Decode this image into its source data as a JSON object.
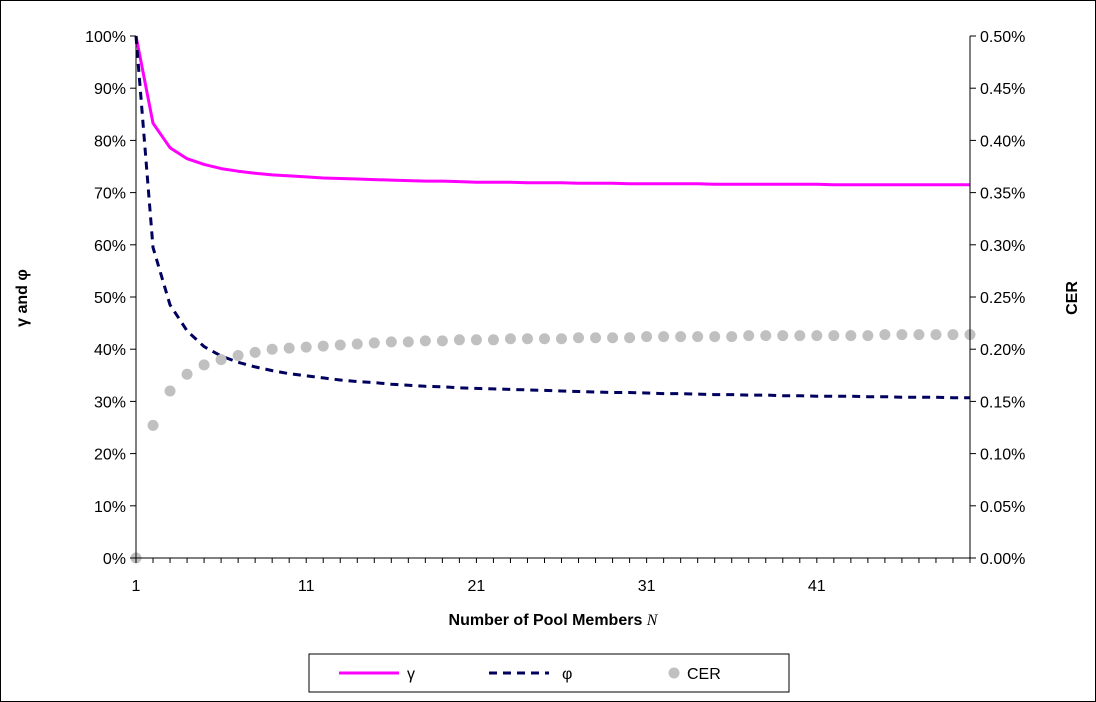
{
  "chart_data": {
    "type": "line",
    "xlabel": "Number of Pool Members",
    "xlabel_var": "N",
    "ylabel_left": "γ and φ",
    "ylabel_right": "CER",
    "x_ticks": [
      1,
      11,
      21,
      31,
      41
    ],
    "xlim": [
      1,
      50
    ],
    "ylim_left": [
      0,
      1
    ],
    "ylim_right": [
      0,
      0.005
    ],
    "y_ticks_left": [
      "0%",
      "10%",
      "20%",
      "30%",
      "40%",
      "50%",
      "60%",
      "70%",
      "80%",
      "90%",
      "100%"
    ],
    "y_ticks_right": [
      "0.00%",
      "0.05%",
      "0.10%",
      "0.15%",
      "0.20%",
      "0.25%",
      "0.30%",
      "0.35%",
      "0.40%",
      "0.45%",
      "0.50%"
    ],
    "legend_position": "bottom",
    "series": [
      {
        "name": "γ",
        "axis": "left",
        "style": "solid",
        "color": "#ff00ff",
        "x": [
          1,
          2,
          3,
          4,
          5,
          6,
          7,
          8,
          9,
          10,
          11,
          12,
          13,
          14,
          15,
          16,
          17,
          18,
          19,
          20,
          21,
          22,
          23,
          24,
          25,
          26,
          27,
          28,
          29,
          30,
          31,
          32,
          33,
          34,
          35,
          36,
          37,
          38,
          39,
          40,
          41,
          42,
          43,
          44,
          45,
          46,
          47,
          48,
          49,
          50
        ],
        "values": [
          1.0,
          0.833,
          0.786,
          0.765,
          0.754,
          0.746,
          0.741,
          0.737,
          0.734,
          0.732,
          0.73,
          0.728,
          0.727,
          0.726,
          0.725,
          0.724,
          0.723,
          0.722,
          0.722,
          0.721,
          0.72,
          0.72,
          0.72,
          0.719,
          0.719,
          0.719,
          0.718,
          0.718,
          0.718,
          0.717,
          0.717,
          0.717,
          0.717,
          0.717,
          0.716,
          0.716,
          0.716,
          0.716,
          0.716,
          0.716,
          0.716,
          0.715,
          0.715,
          0.715,
          0.715,
          0.715,
          0.715,
          0.715,
          0.715,
          0.715
        ]
      },
      {
        "name": "φ",
        "axis": "left",
        "style": "dashed",
        "color": "#00005e",
        "x": [
          1,
          2,
          3,
          4,
          5,
          6,
          7,
          8,
          9,
          10,
          11,
          12,
          13,
          14,
          15,
          16,
          17,
          18,
          19,
          20,
          21,
          22,
          23,
          24,
          25,
          26,
          27,
          28,
          29,
          30,
          31,
          32,
          33,
          34,
          35,
          36,
          37,
          38,
          39,
          40,
          41,
          42,
          43,
          44,
          45,
          46,
          47,
          48,
          49,
          50
        ],
        "values": [
          1.0,
          0.595,
          0.485,
          0.435,
          0.405,
          0.387,
          0.375,
          0.366,
          0.359,
          0.353,
          0.349,
          0.345,
          0.341,
          0.338,
          0.336,
          0.333,
          0.331,
          0.329,
          0.328,
          0.326,
          0.325,
          0.324,
          0.323,
          0.322,
          0.321,
          0.32,
          0.319,
          0.318,
          0.317,
          0.317,
          0.316,
          0.315,
          0.315,
          0.314,
          0.313,
          0.313,
          0.312,
          0.312,
          0.311,
          0.311,
          0.31,
          0.31,
          0.31,
          0.309,
          0.309,
          0.308,
          0.308,
          0.308,
          0.307,
          0.307
        ]
      },
      {
        "name": "CER",
        "axis": "right",
        "style": "markers",
        "color": "#c0c0c0",
        "x": [
          1,
          2,
          3,
          4,
          5,
          6,
          7,
          8,
          9,
          10,
          11,
          12,
          13,
          14,
          15,
          16,
          17,
          18,
          19,
          20,
          21,
          22,
          23,
          24,
          25,
          26,
          27,
          28,
          29,
          30,
          31,
          32,
          33,
          34,
          35,
          36,
          37,
          38,
          39,
          40,
          41,
          42,
          43,
          44,
          45,
          46,
          47,
          48,
          49,
          50
        ],
        "values": [
          0.0,
          0.00127,
          0.0016,
          0.00176,
          0.00185,
          0.0019,
          0.00194,
          0.00197,
          0.002,
          0.00201,
          0.00202,
          0.00203,
          0.00204,
          0.00205,
          0.00206,
          0.00207,
          0.00207,
          0.00208,
          0.00208,
          0.00209,
          0.00209,
          0.00209,
          0.0021,
          0.0021,
          0.0021,
          0.0021,
          0.00211,
          0.00211,
          0.00211,
          0.00211,
          0.00212,
          0.00212,
          0.00212,
          0.00212,
          0.00212,
          0.00212,
          0.00213,
          0.00213,
          0.00213,
          0.00213,
          0.00213,
          0.00213,
          0.00213,
          0.00213,
          0.00214,
          0.00214,
          0.00214,
          0.00214,
          0.00214,
          0.00214
        ]
      }
    ]
  }
}
